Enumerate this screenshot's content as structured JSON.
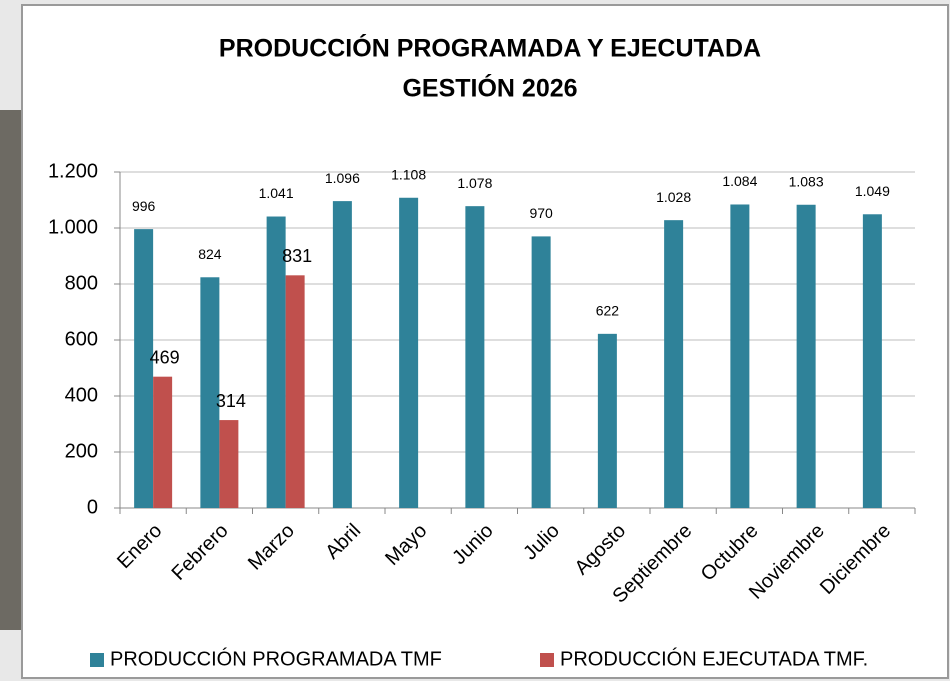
{
  "chart_data": {
    "type": "bar",
    "title": "PRODUCCIÓN PROGRAMADA  Y  EJECUTADA",
    "subtitle": "GESTIÓN 2026",
    "categories": [
      "Enero",
      "Febrero",
      "Marzo",
      "Abril",
      "Mayo",
      "Junio",
      "Julio",
      "Agosto",
      "Septiembre",
      "Octubre",
      "Noviembre",
      "Diciembre"
    ],
    "series": [
      {
        "name": "PRODUCCIÓN PROGRAMADA TMF",
        "color": "#2f8299",
        "values": [
          996,
          824,
          1041,
          1096,
          1108,
          1078,
          970,
          622,
          1028,
          1084,
          1083,
          1049
        ],
        "value_labels": [
          "996",
          "824",
          "1.041",
          "1.096",
          "1.108",
          "1.078",
          "970",
          "622",
          "1.028",
          "1.084",
          "1.083",
          "1.049"
        ]
      },
      {
        "name": "PRODUCCIÓN EJECUTADA TMF.",
        "color": "#c0504d",
        "values": [
          469,
          314,
          831,
          null,
          null,
          null,
          null,
          null,
          null,
          null,
          null,
          null
        ]
      }
    ],
    "ylim": [
      0,
      1200
    ],
    "yticks": [
      0,
      200,
      400,
      600,
      800,
      {
        "value": 1000,
        "label": "1.000"
      },
      {
        "value": 1200,
        "label": "1.200"
      }
    ],
    "grid": true,
    "legend": "bottom"
  }
}
